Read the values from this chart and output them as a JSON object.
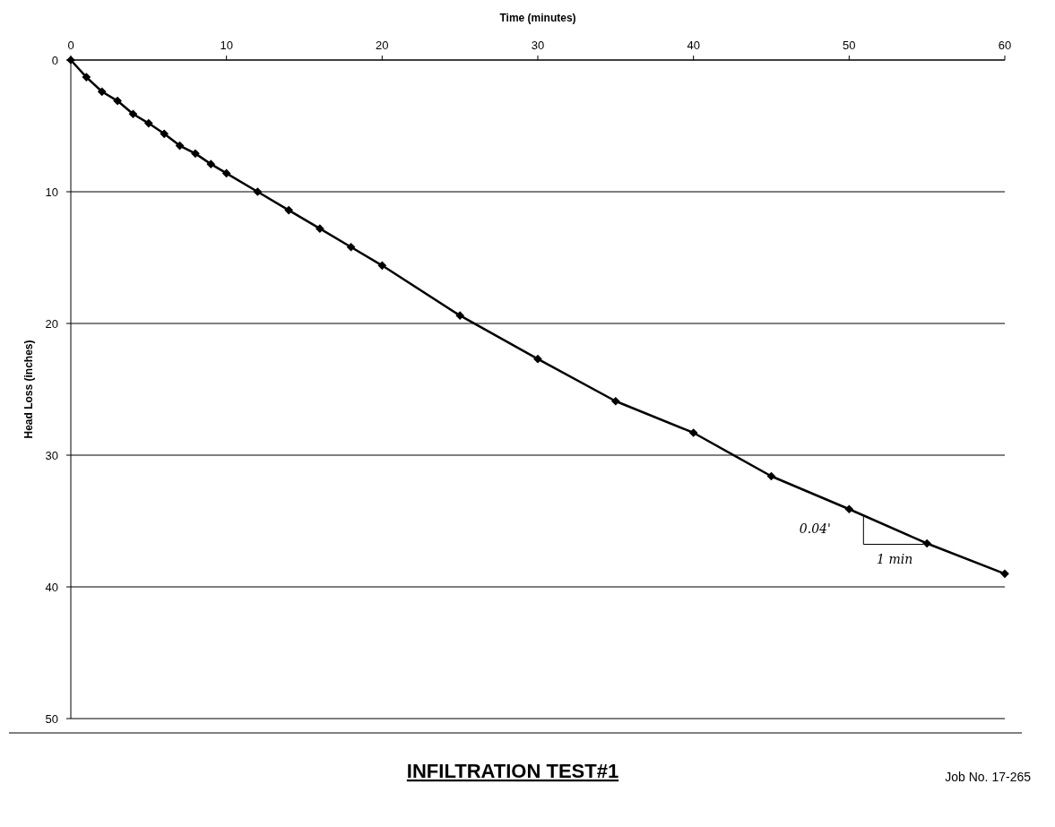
{
  "chart_data": {
    "type": "line",
    "title": "INFILTRATION TEST#1",
    "xlabel": "Time (minutes)",
    "ylabel": "Head Loss (inches)",
    "x": [
      0,
      1,
      2,
      3,
      4,
      5,
      6,
      7,
      8,
      9,
      10,
      12,
      14,
      16,
      18,
      20,
      25,
      30,
      35,
      40,
      45,
      50,
      55,
      60
    ],
    "series": [
      {
        "color": "#000000",
        "values": [
          0,
          1.3,
          2.4,
          3.1,
          4.1,
          4.8,
          5.6,
          6.5,
          7.1,
          7.9,
          8.6,
          10.0,
          11.4,
          12.8,
          14.2,
          15.6,
          19.4,
          22.7,
          25.9,
          28.3,
          31.6,
          34.1,
          36.7,
          39.0
        ]
      }
    ],
    "xlim": [
      0,
      60
    ],
    "xticks": [
      0,
      10,
      20,
      30,
      40,
      50,
      60
    ],
    "ylim": [
      50,
      0
    ],
    "yticks": [
      0,
      10,
      20,
      30,
      40,
      50
    ],
    "grid": "y",
    "marker": "diamond",
    "line_style": "solid",
    "annotations": [
      {
        "text": "0.04'",
        "x": 50,
        "y": 34.1
      },
      {
        "text": "1 min",
        "x": 55,
        "y": 36.7
      },
      "Job No. 17-265"
    ]
  }
}
